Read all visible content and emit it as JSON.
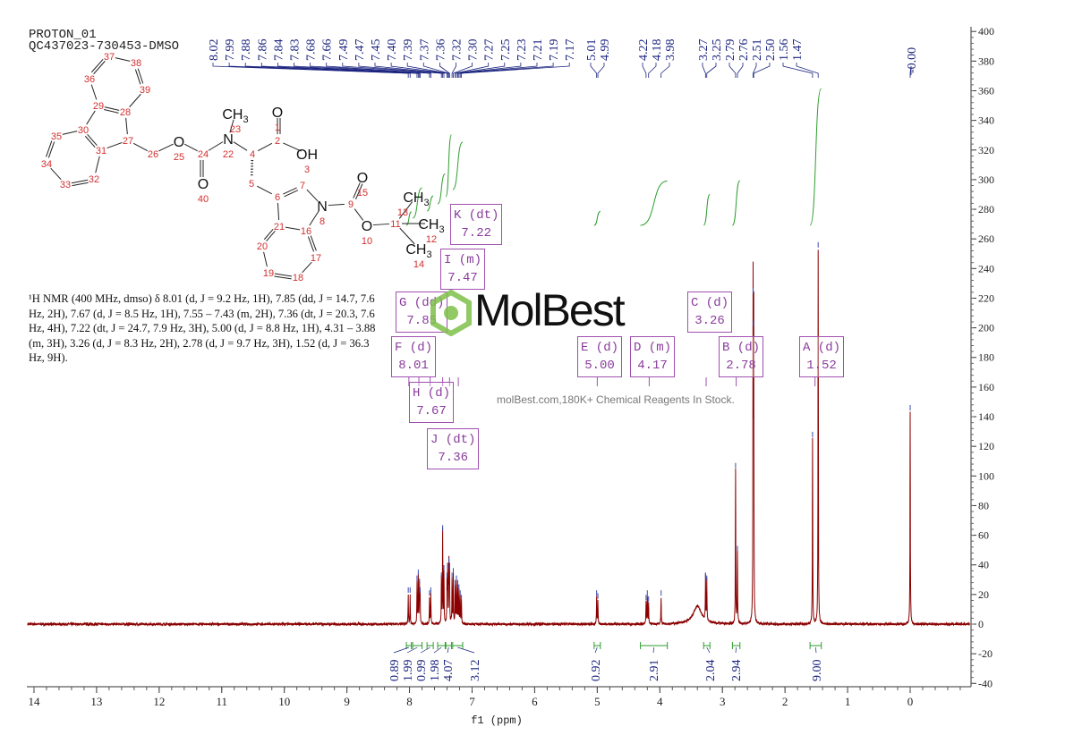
{
  "header": {
    "line1": "PROTON_01",
    "line2": "QC437023-730453-DMSO"
  },
  "description": "¹H NMR (400 MHz, dmso) δ 8.01 (d, J = 9.2 Hz, 1H), 7.85 (dd, J = 14.7, 7.6 Hz, 2H), 7.67 (d, J = 8.5 Hz, 1H), 7.55 – 7.43 (m, 2H), 7.36 (dt, J = 20.3, 7.6 Hz, 4H), 7.22 (dt, J = 24.7, 7.9 Hz, 3H), 5.00 (d, J = 8.8 Hz, 1H), 4.31 – 3.88 (m, 3H), 3.26 (d, J = 8.3 Hz, 2H), 2.78 (d, J = 9.7 Hz, 3H), 1.52 (d, J = 36.3 Hz, 9H).",
  "watermark": {
    "brand": "MolBest",
    "tagline": "molBest.com,180K+ Chemical Reagents In Stock.",
    "color": "#7ec04a"
  },
  "structure": {
    "atom_numbers": [
      "1",
      "2",
      "3",
      "4",
      "5",
      "6",
      "7",
      "8",
      "9",
      "10",
      "11",
      "12",
      "13",
      "14",
      "15",
      "16",
      "17",
      "18",
      "19",
      "20",
      "21",
      "22",
      "23",
      "24",
      "25",
      "26",
      "27",
      "28",
      "29",
      "30",
      "31",
      "32",
      "33",
      "34",
      "35",
      "36",
      "37",
      "38",
      "39",
      "40"
    ],
    "symbols": {
      "O1": "O",
      "O25": "O",
      "N22": "N",
      "C23": "CH3",
      "OH3": "OH",
      "O40": "O",
      "N8": "N",
      "O15": "O",
      "O10": "O",
      "C13": "CH3",
      "C12": "CH3",
      "C14": "CH3"
    }
  },
  "multiplets": [
    {
      "label": "A (d)",
      "shift": "1.52"
    },
    {
      "label": "B (d)",
      "shift": "2.78"
    },
    {
      "label": "C (d)",
      "shift": "3.26"
    },
    {
      "label": "D (m)",
      "shift": "4.17"
    },
    {
      "label": "E (d)",
      "shift": "5.00"
    },
    {
      "label": "F (d)",
      "shift": "8.01"
    },
    {
      "label": "G (dd)",
      "shift": "7.85"
    },
    {
      "label": "H (d)",
      "shift": "7.67"
    },
    {
      "label": "I (m)",
      "shift": "7.47"
    },
    {
      "label": "J (dt)",
      "shift": "7.36"
    },
    {
      "label": "K (dt)",
      "shift": "7.22"
    }
  ],
  "chart_data": {
    "type": "line",
    "xlabel": "f1 (ppm)",
    "xlim": [
      14.1,
      -0.95
    ],
    "ylim": [
      -40,
      400
    ],
    "x_ticks": [
      14,
      13,
      12,
      11,
      10,
      9,
      8,
      7,
      6,
      5,
      4,
      3,
      2,
      1,
      0
    ],
    "y_ticks": [
      -40,
      -20,
      0,
      20,
      40,
      60,
      80,
      100,
      120,
      140,
      160,
      180,
      200,
      220,
      240,
      260,
      280,
      300,
      320,
      340,
      360,
      380,
      400
    ],
    "colors": {
      "spectrum": "#8b0000",
      "peak_labels": "#1a237e",
      "integrals": "#2e9e2e",
      "multiplets": "#a050b0"
    },
    "peak_label_groups": [
      [
        "8.02",
        "7.99",
        "7.88",
        "7.86",
        "7.84",
        "7.83",
        "7.68",
        "7.66",
        "7.49",
        "7.47",
        "7.45",
        "7.40",
        "7.39",
        "7.37",
        "7.36",
        "7.32",
        "7.30",
        "7.27",
        "7.25",
        "7.23",
        "7.21",
        "7.19",
        "7.17"
      ],
      [
        "5.01",
        "4.99"
      ],
      [
        "4.22",
        "4.18",
        "3.98"
      ],
      [
        "3.27",
        "3.25",
        "2.79",
        "2.76",
        "2.51",
        "2.50",
        "1.56",
        "1.47"
      ],
      [
        "-0.00"
      ]
    ],
    "peaks": [
      [
        8.02,
        20
      ],
      [
        7.99,
        20
      ],
      [
        7.88,
        28
      ],
      [
        7.86,
        32
      ],
      [
        7.84,
        26
      ],
      [
        7.83,
        20
      ],
      [
        7.68,
        18
      ],
      [
        7.66,
        20
      ],
      [
        7.49,
        30
      ],
      [
        7.47,
        62
      ],
      [
        7.45,
        35
      ],
      [
        7.4,
        30
      ],
      [
        7.39,
        36
      ],
      [
        7.37,
        40
      ],
      [
        7.36,
        35
      ],
      [
        7.32,
        30
      ],
      [
        7.3,
        33
      ],
      [
        7.27,
        25
      ],
      [
        7.25,
        28
      ],
      [
        7.23,
        25
      ],
      [
        7.21,
        22
      ],
      [
        7.19,
        18
      ],
      [
        7.17,
        15
      ],
      [
        5.01,
        18
      ],
      [
        4.99,
        16
      ],
      [
        4.22,
        15
      ],
      [
        4.2,
        18
      ],
      [
        4.18,
        14
      ],
      [
        3.98,
        18
      ],
      [
        3.27,
        30
      ],
      [
        3.25,
        28
      ],
      [
        2.79,
        104
      ],
      [
        2.76,
        48
      ],
      [
        2.51,
        222
      ],
      [
        2.5,
        200
      ],
      [
        1.56,
        125
      ],
      [
        1.47,
        253
      ],
      [
        0.0,
        143
      ]
    ],
    "broad_peaks": [
      [
        3.4,
        12
      ]
    ],
    "integrals": [
      {
        "from": 8.05,
        "to": 7.97,
        "value": "0.89"
      },
      {
        "from": 7.95,
        "to": 7.8,
        "value": "1.99"
      },
      {
        "from": 7.72,
        "to": 7.62,
        "value": "0.99"
      },
      {
        "from": 7.55,
        "to": 7.43,
        "value": "1.98"
      },
      {
        "from": 7.42,
        "to": 7.33,
        "value": "4.07"
      },
      {
        "from": 7.31,
        "to": 7.15,
        "value": "3.12"
      },
      {
        "from": 5.05,
        "to": 4.95,
        "value": "0.92"
      },
      {
        "from": 4.31,
        "to": 3.88,
        "value": "2.91"
      },
      {
        "from": 3.3,
        "to": 3.2,
        "value": "2.04"
      },
      {
        "from": 2.84,
        "to": 2.72,
        "value": "2.94"
      },
      {
        "from": 1.6,
        "to": 1.42,
        "value": "9.00"
      }
    ]
  }
}
